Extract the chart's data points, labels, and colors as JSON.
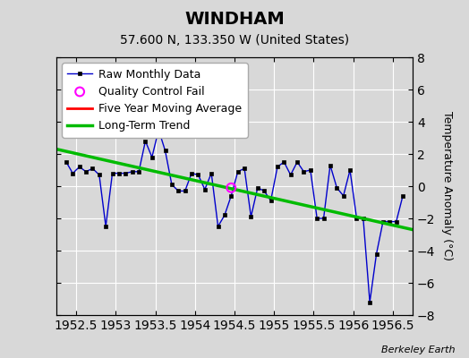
{
  "title": "WINDHAM",
  "subtitle": "57.600 N, 133.350 W (United States)",
  "credit": "Berkeley Earth",
  "xlim": [
    1952.25,
    1956.75
  ],
  "ylim": [
    -8,
    8
  ],
  "ylabel": "Temperature Anomaly (°C)",
  "background_color": "#d8d8d8",
  "plot_bg_color": "#d8d8d8",
  "raw_x": [
    1952.375,
    1952.458,
    1952.542,
    1952.625,
    1952.708,
    1952.792,
    1952.875,
    1952.958,
    1953.042,
    1953.125,
    1953.208,
    1953.292,
    1953.375,
    1953.458,
    1953.542,
    1953.625,
    1953.708,
    1953.792,
    1953.875,
    1953.958,
    1954.042,
    1954.125,
    1954.208,
    1954.292,
    1954.375,
    1954.458,
    1954.542,
    1954.625,
    1954.708,
    1954.792,
    1954.875,
    1954.958,
    1955.042,
    1955.125,
    1955.208,
    1955.292,
    1955.375,
    1955.458,
    1955.542,
    1955.625,
    1955.708,
    1955.792,
    1955.875,
    1955.958,
    1956.042,
    1956.125,
    1956.208,
    1956.292,
    1956.375,
    1956.458,
    1956.542,
    1956.625
  ],
  "raw_y": [
    1.5,
    0.8,
    1.2,
    0.9,
    1.1,
    0.7,
    -2.5,
    0.8,
    0.8,
    0.8,
    0.9,
    0.9,
    2.8,
    1.8,
    3.5,
    2.2,
    0.1,
    -0.3,
    -0.3,
    0.8,
    0.7,
    -0.2,
    0.8,
    -2.5,
    -1.8,
    -0.6,
    0.9,
    1.1,
    -1.9,
    -0.1,
    -0.3,
    -0.9,
    1.2,
    1.5,
    0.7,
    1.5,
    0.9,
    1.0,
    -2.0,
    -2.0,
    1.3,
    -0.1,
    -0.6,
    1.0,
    -2.0,
    -2.0,
    -7.2,
    -4.2,
    -2.2,
    -2.2,
    -2.2,
    -0.6
  ],
  "qc_x": [
    1954.458
  ],
  "qc_y": [
    -0.1
  ],
  "trend_x": [
    1952.25,
    1956.75
  ],
  "trend_y": [
    2.3,
    -2.7
  ],
  "moving_avg_x": [],
  "moving_avg_y": [],
  "raw_color": "#0000cc",
  "raw_marker_color": "#000000",
  "qc_color": "#ff00ff",
  "trend_color": "#00bb00",
  "moving_avg_color": "#ff0000",
  "grid_color": "#ffffff",
  "x_ticks": [
    1952.5,
    1953.0,
    1953.5,
    1954.0,
    1954.5,
    1955.0,
    1955.5,
    1956.0,
    1956.5
  ],
  "x_tick_labels": [
    "1952.5",
    "1953",
    "1953.5",
    "1954",
    "1954.5",
    "1955",
    "1955.5",
    "1956",
    "1956.5"
  ],
  "y_ticks": [
    -8,
    -6,
    -4,
    -2,
    0,
    2,
    4,
    6,
    8
  ],
  "tick_label_fontsize": 10,
  "title_fontsize": 14,
  "subtitle_fontsize": 10,
  "legend_fontsize": 9
}
